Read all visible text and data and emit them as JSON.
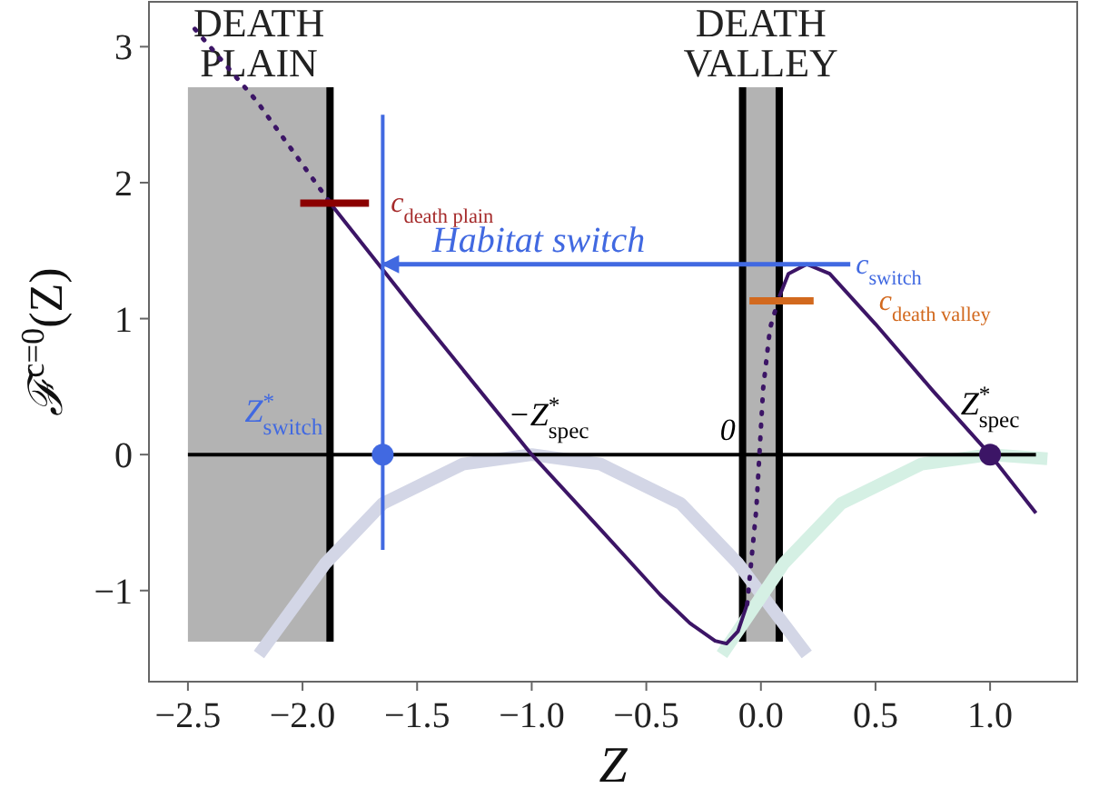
{
  "chart_data": {
    "type": "line",
    "xlabel": "Z",
    "ylabel": "ℱ$^{c=0}$(Z)",
    "xlim": [
      -2.67,
      1.38
    ],
    "ylim": [
      -1.67,
      3.33
    ],
    "xticks": [
      {
        "value": -2.5,
        "label": "−2.5"
      },
      {
        "value": -2.0,
        "label": "−2.0"
      },
      {
        "value": -1.5,
        "label": "−1.5"
      },
      {
        "value": -1.0,
        "label": "−1.0"
      },
      {
        "value": -0.5,
        "label": "−0.5"
      },
      {
        "value": 0.0,
        "label": "0.0"
      },
      {
        "value": 0.5,
        "label": "0.5"
      },
      {
        "value": 1.0,
        "label": "1.0"
      }
    ],
    "yticks": [
      {
        "value": -1,
        "label": "−1"
      },
      0,
      1,
      2,
      3
    ],
    "grid": false,
    "bands": [
      {
        "axis": "x",
        "from": -2.5,
        "to": -1.88,
        "label": "DEATH PLAIN",
        "color": "#b3b3b3"
      },
      {
        "axis": "x",
        "from": -0.08,
        "to": 0.08,
        "label": "DEATH VALLEY",
        "color": "#b3b3b3"
      }
    ],
    "ref_lines": [
      {
        "axis": "x",
        "value": -1.88,
        "color": "#000000"
      },
      {
        "axis": "x",
        "value": -0.08,
        "color": "#000000"
      },
      {
        "axis": "x",
        "value": 0.08,
        "color": "#000000"
      }
    ],
    "series": [
      {
        "color": "#d3d6e6",
        "line_style": "solid",
        "x": [
          -2.19,
          -1.9,
          -1.65,
          -1.3,
          -1.0,
          -0.7,
          -0.35,
          -0.1,
          0.2
        ],
        "values": [
          -1.47,
          -0.8,
          -0.36,
          -0.07,
          0,
          -0.07,
          -0.36,
          -0.8,
          -1.47
        ]
      },
      {
        "color": "#d5f0e4",
        "line_style": "solid",
        "x": [
          -0.17,
          0.1,
          0.35,
          0.7,
          1.0,
          1.25
        ],
        "values": [
          -1.47,
          -0.8,
          -0.36,
          -0.07,
          0,
          -0.03
        ]
      },
      {
        "color": "#000000",
        "line_style": "solid",
        "x": [
          -2.5,
          1.2
        ],
        "values": [
          0,
          0
        ]
      },
      {
        "color": "#3c1566",
        "line_style": "dotted",
        "x": [
          -2.47,
          -2.2,
          -1.87
        ],
        "values": [
          3.13,
          2.6,
          1.83
        ]
      },
      {
        "color": "#3c1566",
        "line_style": "solid",
        "x": [
          -1.87,
          -1.5,
          -1.0,
          -0.7,
          -0.44,
          -0.31,
          -0.2,
          -0.15,
          -0.1,
          -0.06
        ],
        "values": [
          1.83,
          1.04,
          0,
          -0.55,
          -1.03,
          -1.24,
          -1.37,
          -1.39,
          -1.3,
          -1.1
        ]
      },
      {
        "color": "#3c1566",
        "line_style": "dotted",
        "x": [
          -0.06,
          -0.02,
          0.01,
          0.04,
          0.08
        ],
        "values": [
          -1.1,
          -0.4,
          0.49,
          0.93,
          1.16
        ]
      },
      {
        "color": "#3c1566",
        "line_style": "solid",
        "x": [
          0.08,
          0.12,
          0.2,
          0.3,
          0.5,
          0.75,
          1.0,
          1.2
        ],
        "values": [
          1.16,
          1.33,
          1.4,
          1.33,
          0.96,
          0.47,
          0,
          -0.43
        ]
      },
      {
        "color": "#4169e1",
        "line_style": "solid",
        "x": [
          -1.65,
          -1.65
        ],
        "values": [
          -0.7,
          2.5
        ]
      },
      {
        "color": "#8b0000",
        "line_style": "solid",
        "x": [
          -2.01,
          -1.71
        ],
        "values": [
          1.85,
          1.85
        ]
      },
      {
        "color": "#d2691e",
        "line_style": "solid",
        "x": [
          -0.05,
          0.23
        ],
        "values": [
          1.13,
          1.13
        ]
      },
      {
        "color": "#4169e1",
        "line_style": "solid",
        "x": [
          0.39,
          -1.65
        ],
        "values": [
          1.4,
          1.4
        ]
      },
      {
        "type": "scatter",
        "color": "#4169e1",
        "marker": "circle",
        "x": [
          -1.65
        ],
        "values": [
          0
        ]
      },
      {
        "type": "scatter",
        "color": "#3c1566",
        "marker": "circle",
        "x": [
          1.0
        ],
        "values": [
          0
        ]
      }
    ],
    "annotations": [
      {
        "text": "c$_{death plain}$",
        "x": -1.71,
        "y": 1.85
      },
      {
        "text": "Habitat switch",
        "x": -0.97,
        "y": 1.4
      },
      {
        "text": "c$_{switch}$",
        "x": 0.39,
        "y": 1.4
      },
      {
        "text": "c$_{death valley}$",
        "x": 0.23,
        "y": 1.13
      },
      {
        "text": "Z$^{*}$$_{switch}$",
        "x": -1.65,
        "y": 0
      },
      {
        "text": "−Z$^{*}$$_{spec}$",
        "x": -1.0,
        "y": 0
      },
      {
        "text": "0",
        "x": 0.0,
        "y": 0
      },
      {
        "text": "Z$^{*}$$_{spec}$",
        "x": 1.0,
        "y": 0
      }
    ]
  }
}
